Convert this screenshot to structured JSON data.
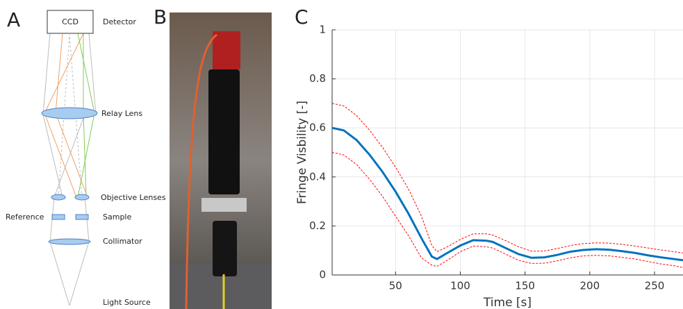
{
  "panels": {
    "a": {
      "label": "A",
      "ccd": "CCD",
      "detector": "Detector",
      "relay_lens": "Relay Lens",
      "objective_lenses": "Objective Lenses",
      "reference": "Reference",
      "sample": "Sample",
      "collimator": "Collimator",
      "light_source": "Light Source"
    },
    "b": {
      "label": "B"
    },
    "c": {
      "label": "C"
    }
  },
  "chart_data": {
    "type": "line",
    "xlabel": "Time [s]",
    "ylabel": "Fringe Visbility [-]",
    "x": [
      1,
      10,
      20,
      30,
      40,
      50,
      60,
      70,
      78,
      82,
      90,
      100,
      110,
      120,
      125,
      135,
      145,
      155,
      165,
      175,
      185,
      195,
      205,
      215,
      225,
      235,
      245,
      255,
      265,
      272
    ],
    "series": [
      {
        "color": "#0072bd",
        "dashed": false,
        "values": [
          0.6,
          0.59,
          0.55,
          0.49,
          0.42,
          0.34,
          0.25,
          0.15,
          0.075,
          0.065,
          0.09,
          0.12,
          0.142,
          0.14,
          0.135,
          0.11,
          0.085,
          0.07,
          0.072,
          0.082,
          0.095,
          0.102,
          0.105,
          0.103,
          0.097,
          0.09,
          0.08,
          0.072,
          0.065,
          0.06
        ]
      },
      {
        "color": "#ff0000",
        "dashed": true,
        "values": [
          0.7,
          0.69,
          0.65,
          0.59,
          0.52,
          0.44,
          0.35,
          0.24,
          0.12,
          0.095,
          0.115,
          0.145,
          0.168,
          0.168,
          0.163,
          0.14,
          0.115,
          0.097,
          0.098,
          0.108,
          0.12,
          0.128,
          0.131,
          0.13,
          0.125,
          0.118,
          0.11,
          0.102,
          0.095,
          0.09
        ]
      },
      {
        "color": "#ff0000",
        "dashed": true,
        "values": [
          0.5,
          0.49,
          0.45,
          0.39,
          0.32,
          0.24,
          0.16,
          0.07,
          0.04,
          0.035,
          0.06,
          0.095,
          0.118,
          0.115,
          0.11,
          0.085,
          0.06,
          0.047,
          0.048,
          0.058,
          0.07,
          0.078,
          0.08,
          0.078,
          0.072,
          0.065,
          0.055,
          0.045,
          0.038,
          0.03
        ]
      }
    ],
    "xlim": [
      1,
      272
    ],
    "ylim": [
      0,
      1
    ],
    "xticks": [
      50,
      100,
      150,
      200,
      250
    ],
    "yticks": [
      0,
      0.2,
      0.4,
      0.6,
      0.8,
      1
    ],
    "grid": true
  }
}
